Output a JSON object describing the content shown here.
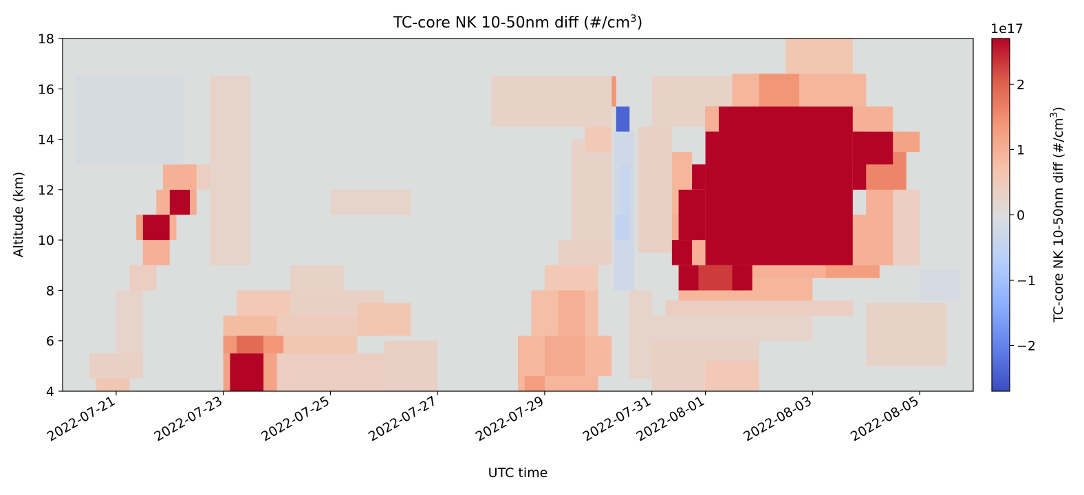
{
  "chart_data": {
    "type": "heatmap",
    "title": "TC-core NK 10-50nm diff (#/cm",
    "title_sup": "3",
    "title_end": ")",
    "xlabel": "UTC time",
    "ylabel": "Altitude (km)",
    "colorbar_label": "TC-core NK 10-50nm diff (#/cm",
    "colorbar_label_sup": "3",
    "colorbar_label_end": ")",
    "colorbar_exponent": "1e17",
    "colormap": "coolwarm",
    "x_range": [
      "2022-07-20 00:00",
      "2022-08-06 00:00"
    ],
    "y_range": [
      4,
      18
    ],
    "color_range": [
      -2.7,
      2.7
    ],
    "x_ticks": [
      {
        "date": "2022-07-21",
        "label": "2022-07-21"
      },
      {
        "date": "2022-07-23",
        "label": "2022-07-23"
      },
      {
        "date": "2022-07-25",
        "label": "2022-07-25"
      },
      {
        "date": "2022-07-27",
        "label": "2022-07-27"
      },
      {
        "date": "2022-07-29",
        "label": "2022-07-29"
      },
      {
        "date": "2022-07-31",
        "label": "2022-07-31"
      },
      {
        "date": "2022-08-01",
        "label": "2022-08-01"
      },
      {
        "date": "2022-08-03",
        "label": "2022-08-03"
      },
      {
        "date": "2022-08-05",
        "label": "2022-08-05"
      }
    ],
    "y_ticks": [
      {
        "value": 4,
        "label": "4"
      },
      {
        "value": 6,
        "label": "6"
      },
      {
        "value": 8,
        "label": "8"
      },
      {
        "value": 10,
        "label": "10"
      },
      {
        "value": 12,
        "label": "12"
      },
      {
        "value": 14,
        "label": "14"
      },
      {
        "value": 16,
        "label": "16"
      },
      {
        "value": 18,
        "label": "18"
      }
    ],
    "colorbar_ticks": [
      {
        "value": 2,
        "label": "2"
      },
      {
        "value": 1,
        "label": "1"
      },
      {
        "value": 0,
        "label": "0"
      },
      {
        "value": -1,
        "label": "−1"
      },
      {
        "value": -2,
        "label": "−2"
      }
    ],
    "cells": [
      {
        "t0": "2022-07-20 15:00",
        "t1": "2022-07-21 06:00",
        "z0": 4,
        "z1": 4.5,
        "v": 0.6
      },
      {
        "t0": "2022-07-20 12:00",
        "t1": "2022-07-21 12:00",
        "z0": 4.5,
        "z1": 5.5,
        "v": 0.35
      },
      {
        "t0": "2022-07-21 00:00",
        "t1": "2022-07-21 12:00",
        "z0": 5.5,
        "z1": 8,
        "v": 0.25
      },
      {
        "t0": "2022-07-21 06:00",
        "t1": "2022-07-21 18:00",
        "z0": 8,
        "z1": 9,
        "v": 0.4
      },
      {
        "t0": "2022-07-21 12:00",
        "t1": "2022-07-22 00:00",
        "z0": 9,
        "z1": 10,
        "v": 1.0
      },
      {
        "t0": "2022-07-21 09:00",
        "t1": "2022-07-21 12:00",
        "z0": 10,
        "z1": 11,
        "v": 1.2
      },
      {
        "t0": "2022-07-21 12:00",
        "t1": "2022-07-22 00:00",
        "z0": 10,
        "z1": 11,
        "v": 2.7
      },
      {
        "t0": "2022-07-22 00:00",
        "t1": "2022-07-22 03:00",
        "z0": 10,
        "z1": 11,
        "v": 1.0
      },
      {
        "t0": "2022-07-21 18:00",
        "t1": "2022-07-22 00:00",
        "z0": 11,
        "z1": 12,
        "v": 1.0
      },
      {
        "t0": "2022-07-22 00:00",
        "t1": "2022-07-22 09:00",
        "z0": 11,
        "z1": 12,
        "v": 2.7
      },
      {
        "t0": "2022-07-22 09:00",
        "t1": "2022-07-22 12:00",
        "z0": 11,
        "z1": 12,
        "v": 1.1
      },
      {
        "t0": "2022-07-21 21:00",
        "t1": "2022-07-22 12:00",
        "z0": 12,
        "z1": 13,
        "v": 1.0
      },
      {
        "t0": "2022-07-22 12:00",
        "t1": "2022-07-23 00:00",
        "z0": 12,
        "z1": 13,
        "v": 0.4
      },
      {
        "t0": "2022-07-20 06:00",
        "t1": "2022-07-22 06:00",
        "z0": 13,
        "z1": 16.5,
        "v": -0.12
      },
      {
        "t0": "2022-07-23 00:00",
        "t1": "2022-07-24 00:00",
        "z0": 4,
        "z1": 5.5,
        "v": 1.2
      },
      {
        "t0": "2022-07-23 03:00",
        "t1": "2022-07-23 18:00",
        "z0": 4,
        "z1": 5.5,
        "v": 2.7
      },
      {
        "t0": "2022-07-23 00:00",
        "t1": "2022-07-24 03:00",
        "z0": 5.5,
        "z1": 6.2,
        "v": 1.4
      },
      {
        "t0": "2022-07-23 06:00",
        "t1": "2022-07-23 18:00",
        "z0": 5.5,
        "z1": 6.2,
        "v": 1.9
      },
      {
        "t0": "2022-07-24 03:00",
        "t1": "2022-07-25 12:00",
        "z0": 5.5,
        "z1": 6.2,
        "v": 0.6
      },
      {
        "t0": "2022-07-23 00:00",
        "t1": "2022-07-24 00:00",
        "z0": 6.2,
        "z1": 7,
        "v": 0.8
      },
      {
        "t0": "2022-07-24 00:00",
        "t1": "2022-07-26 00:00",
        "z0": 6.2,
        "z1": 7,
        "v": 0.45
      },
      {
        "t0": "2022-07-23 06:00",
        "t1": "2022-07-24 06:00",
        "z0": 7,
        "z1": 8,
        "v": 0.55
      },
      {
        "t0": "2022-07-24 06:00",
        "t1": "2022-07-26 00:00",
        "z0": 7,
        "z1": 8,
        "v": 0.35
      },
      {
        "t0": "2022-07-24 00:00",
        "t1": "2022-07-26 00:00",
        "z0": 4,
        "z1": 5.5,
        "v": 0.4
      },
      {
        "t0": "2022-07-25 12:00",
        "t1": "2022-07-26 12:00",
        "z0": 6.2,
        "z1": 7.5,
        "v": 0.6
      },
      {
        "t0": "2022-07-26 00:00",
        "t1": "2022-07-27 00:00",
        "z0": 4,
        "z1": 6,
        "v": 0.35
      },
      {
        "t0": "2022-07-24 06:00",
        "t1": "2022-07-25 06:00",
        "z0": 8,
        "z1": 9,
        "v": 0.3
      },
      {
        "t0": "2022-07-22 18:00",
        "t1": "2022-07-23 12:00",
        "z0": 9,
        "z1": 16.5,
        "v": 0.25
      },
      {
        "t0": "2022-07-25 00:00",
        "t1": "2022-07-26 12:00",
        "z0": 11,
        "z1": 12,
        "v": 0.25
      },
      {
        "t0": "2022-07-28 12:00",
        "t1": "2022-07-30 00:00",
        "z0": 4,
        "z1": 4.6,
        "v": 0.9
      },
      {
        "t0": "2022-07-28 15:00",
        "t1": "2022-07-29 00:00",
        "z0": 4,
        "z1": 4.6,
        "v": 1.3
      },
      {
        "t0": "2022-07-28 12:00",
        "t1": "2022-07-30 06:00",
        "z0": 4.6,
        "z1": 6.2,
        "v": 0.85
      },
      {
        "t0": "2022-07-29 00:00",
        "t1": "2022-07-29 18:00",
        "z0": 4.6,
        "z1": 6.2,
        "v": 1.1
      },
      {
        "t0": "2022-07-28 18:00",
        "t1": "2022-07-30 00:00",
        "z0": 6.2,
        "z1": 8,
        "v": 0.75
      },
      {
        "t0": "2022-07-29 06:00",
        "t1": "2022-07-29 18:00",
        "z0": 6.2,
        "z1": 8,
        "v": 1.0
      },
      {
        "t0": "2022-07-29 00:00",
        "t1": "2022-07-30 00:00",
        "z0": 8,
        "z1": 9,
        "v": 0.55
      },
      {
        "t0": "2022-07-29 06:00",
        "t1": "2022-07-30 06:00",
        "z0": 9,
        "z1": 10,
        "v": 0.35
      },
      {
        "t0": "2022-07-29 12:00",
        "t1": "2022-07-30 06:00",
        "z0": 10,
        "z1": 14,
        "v": 0.3
      },
      {
        "t0": "2022-07-29 18:00",
        "t1": "2022-07-30 06:00",
        "z0": 13.5,
        "z1": 14.5,
        "v": 0.55
      },
      {
        "t0": "2022-07-28 00:00",
        "t1": "2022-07-30 06:00",
        "z0": 14.5,
        "z1": 16.5,
        "v": 0.3
      },
      {
        "t0": "2022-07-30 06:00",
        "t1": "2022-07-30 08:00",
        "z0": 15.3,
        "z1": 16.5,
        "v": 1.4
      },
      {
        "t0": "2022-07-30 08:00",
        "t1": "2022-07-30 14:00",
        "z0": 14.3,
        "z1": 15.3,
        "v": -2.4
      },
      {
        "t0": "2022-07-30 07:00",
        "t1": "2022-07-30 16:00",
        "z0": 8,
        "z1": 14.3,
        "v": -0.25
      },
      {
        "t0": "2022-07-30 08:00",
        "t1": "2022-07-30 14:00",
        "z0": 10,
        "z1": 11,
        "v": -0.5
      },
      {
        "t0": "2022-07-30 10:00",
        "t1": "2022-07-30 14:00",
        "z0": 11,
        "z1": 13,
        "v": -0.4
      },
      {
        "t0": "2022-07-30 14:00",
        "t1": "2022-07-31 00:00",
        "z0": 4.5,
        "z1": 8,
        "v": 0.25
      },
      {
        "t0": "2022-07-31 00:00",
        "t1": "2022-08-02 00:00",
        "z0": 4,
        "z1": 6,
        "v": 0.35
      },
      {
        "t0": "2022-07-31 00:00",
        "t1": "2022-08-03 00:00",
        "z0": 6,
        "z1": 7,
        "v": 0.25
      },
      {
        "t0": "2022-07-31 06:00",
        "t1": "2022-08-03 18:00",
        "z0": 7,
        "z1": 7.6,
        "v": 0.4
      },
      {
        "t0": "2022-07-31 12:00",
        "t1": "2022-08-03 00:00",
        "z0": 7.6,
        "z1": 8.5,
        "v": 0.9
      },
      {
        "t0": "2022-07-31 12:00",
        "t1": "2022-08-04 06:00",
        "z0": 8.5,
        "z1": 9,
        "v": 1.0
      },
      {
        "t0": "2022-07-31 09:00",
        "t1": "2022-08-04 12:00",
        "z0": 9,
        "z1": 11,
        "v": 1.0
      },
      {
        "t0": "2022-07-31 09:00",
        "t1": "2022-07-31 18:00",
        "z0": 11,
        "z1": 13.5,
        "v": 0.9
      },
      {
        "t0": "2022-07-30 18:00",
        "t1": "2022-07-31 09:00",
        "z0": 9.5,
        "z1": 14.5,
        "v": 0.35
      },
      {
        "t0": "2022-07-31 00:00",
        "t1": "2022-08-01 12:00",
        "z0": 14.5,
        "z1": 16.5,
        "v": 0.3
      },
      {
        "t0": "2022-07-31 18:00",
        "t1": "2022-08-01 12:00",
        "z0": 11,
        "z1": 13,
        "v": 1.1
      },
      {
        "t0": "2022-08-01 12:00",
        "t1": "2022-08-02 00:00",
        "z0": 13,
        "z1": 15.3,
        "v": 0.9
      },
      {
        "t0": "2022-08-03 12:00",
        "t1": "2022-08-04 12:00",
        "z0": 13.5,
        "z1": 15.3,
        "v": 1.0
      },
      {
        "t0": "2022-08-04 00:00",
        "t1": "2022-08-04 18:00",
        "z0": 11,
        "z1": 14.3,
        "v": 1.0
      },
      {
        "t0": "2022-08-04 00:00",
        "t1": "2022-08-04 18:00",
        "z0": 12,
        "z1": 13.5,
        "v": 1.6
      },
      {
        "t0": "2022-08-04 12:00",
        "t1": "2022-08-05 00:00",
        "z0": 13.5,
        "z1": 14.3,
        "v": 1.2
      },
      {
        "t0": "2022-08-03 18:00",
        "t1": "2022-08-04 12:00",
        "z0": 9,
        "z1": 11,
        "v": 1.0
      },
      {
        "t0": "2022-08-04 12:00",
        "t1": "2022-08-05 00:00",
        "z0": 9,
        "z1": 12,
        "v": 0.4
      },
      {
        "t0": "2022-08-03 06:00",
        "t1": "2022-08-04 06:00",
        "z0": 8.5,
        "z1": 9,
        "v": 1.3
      },
      {
        "t0": "2022-08-01 12:00",
        "t1": "2022-08-04 00:00",
        "z0": 15.3,
        "z1": 16.6,
        "v": 0.9
      },
      {
        "t0": "2022-08-02 00:00",
        "t1": "2022-08-02 18:00",
        "z0": 15.3,
        "z1": 16.6,
        "v": 1.4
      },
      {
        "t0": "2022-08-02 12:00",
        "t1": "2022-08-03 18:00",
        "z0": 16.6,
        "z1": 18,
        "v": 0.6
      },
      {
        "t0": "2022-08-01 06:00",
        "t1": "2022-08-01 18:00",
        "z0": 14.3,
        "z1": 15.3,
        "v": 1.0
      },
      {
        "t0": "2022-08-01 00:00",
        "t1": "2022-08-02 00:00",
        "z0": 4,
        "z1": 5.2,
        "v": 0.55
      },
      {
        "t0": "2022-08-04 00:00",
        "t1": "2022-08-05 12:00",
        "z0": 5,
        "z1": 7.5,
        "v": 0.3
      },
      {
        "t0": "2022-08-05 00:00",
        "t1": "2022-08-05 18:00",
        "z0": 7.6,
        "z1": 8.8,
        "v": -0.15
      },
      {
        "t0": "2022-08-01 00:00",
        "t1": "2022-08-03 18:00",
        "z0": 9,
        "z1": 15.3,
        "v": 2.7
      },
      {
        "t0": "2022-07-31 12:00",
        "t1": "2022-08-01 00:00",
        "z0": 10,
        "z1": 11,
        "v": 2.7
      },
      {
        "t0": "2022-07-31 09:00",
        "t1": "2022-07-31 18:00",
        "z0": 9,
        "z1": 10,
        "v": 2.7
      },
      {
        "t0": "2022-07-31 12:00",
        "t1": "2022-08-01 00:00",
        "z0": 11,
        "z1": 12,
        "v": 2.7
      },
      {
        "t0": "2022-07-31 18:00",
        "t1": "2022-08-01 00:00",
        "z0": 12,
        "z1": 13,
        "v": 2.7
      },
      {
        "t0": "2022-08-01 00:00",
        "t1": "2022-08-01 06:00",
        "z0": 14.3,
        "z1": 15.3,
        "v": 1.0
      },
      {
        "t0": "2022-08-03 18:00",
        "t1": "2022-08-04 00:00",
        "z0": 12,
        "z1": 14.3,
        "v": 2.7
      },
      {
        "t0": "2022-08-03 18:00",
        "t1": "2022-08-04 12:00",
        "z0": 13,
        "z1": 14.3,
        "v": 2.7
      },
      {
        "t0": "2022-07-31 12:00",
        "t1": "2022-07-31 21:00",
        "z0": 8,
        "z1": 9,
        "v": 2.7
      },
      {
        "t0": "2022-07-31 21:00",
        "t1": "2022-08-01 18:00",
        "z0": 8,
        "z1": 9,
        "v": 2.3
      },
      {
        "t0": "2022-08-01 12:00",
        "t1": "2022-08-01 21:00",
        "z0": 8,
        "z1": 9,
        "v": 2.7
      }
    ]
  }
}
